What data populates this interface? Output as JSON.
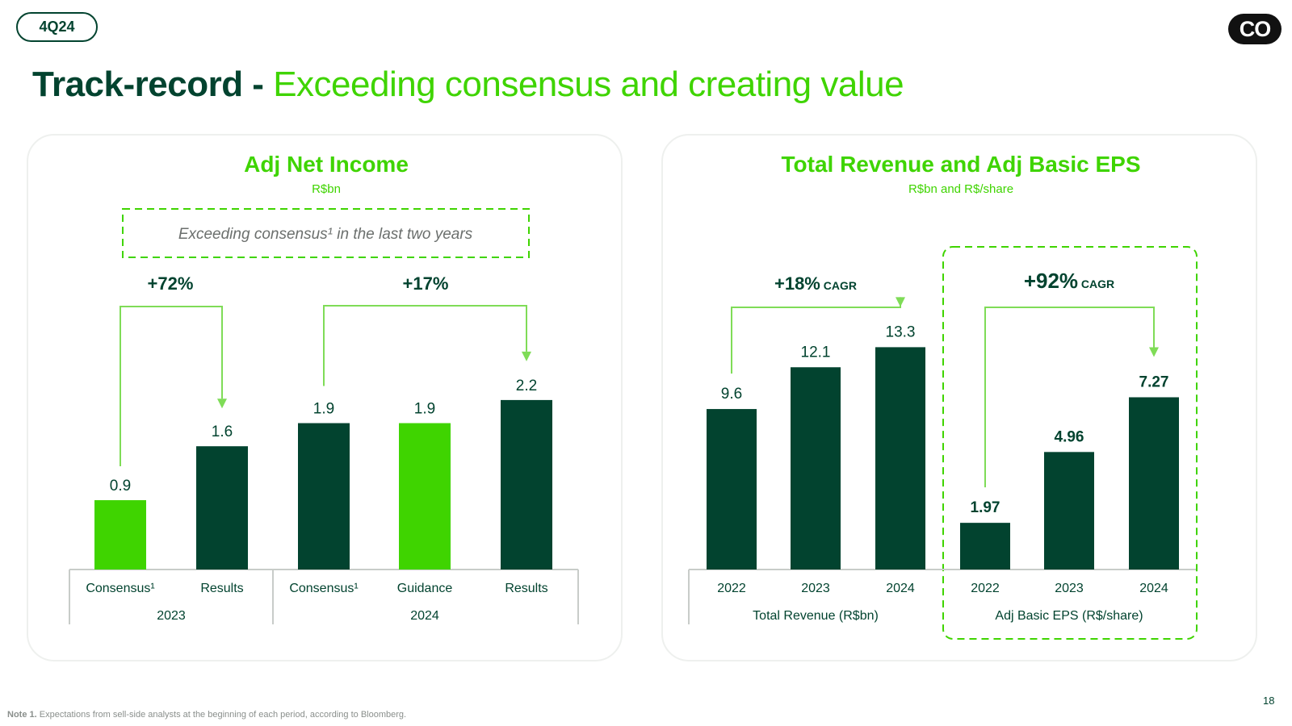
{
  "header": {
    "period_tag": "4Q24",
    "logo_text": "CO"
  },
  "title": {
    "dark": "Track-record - ",
    "light": "Exceeding consensus and creating value"
  },
  "colors": {
    "dark": "#02432f",
    "light": "#3fd400",
    "arrow": "#7fdc57",
    "axis": "#c8ccc9",
    "muted": "#6b6f6d"
  },
  "chart_data": [
    {
      "type": "bar",
      "title": "Adj Net Income",
      "subtitle": "R$bn",
      "callout": "Exceeding consensus¹ in the last two years",
      "categories": [
        "Consensus¹",
        "Results",
        "Consensus¹",
        "Guidance",
        "Results"
      ],
      "groups": [
        "2023",
        "2024"
      ],
      "values": [
        0.9,
        1.6,
        1.9,
        1.9,
        2.2
      ],
      "value_labels": [
        "0.9",
        "1.6",
        "1.9",
        "1.9",
        "2.2"
      ],
      "bar_colors": [
        "light",
        "dark",
        "dark",
        "light",
        "dark"
      ],
      "annotations": [
        {
          "text": "+72%",
          "from_index": 0,
          "to_index": 1
        },
        {
          "text": "+17%",
          "from_index": 2,
          "to_index": 4
        }
      ],
      "ylim": [
        0,
        2.5
      ]
    },
    {
      "type": "bar",
      "title": "Total Revenue and Adj Basic EPS",
      "subtitle": "R$bn and R$/share",
      "series": [
        {
          "name": "Total Revenue (R$bn)",
          "categories": [
            "2022",
            "2023",
            "2024"
          ],
          "values": [
            9.6,
            12.1,
            13.3
          ],
          "value_labels": [
            "9.6",
            "12.1",
            "13.3"
          ],
          "annotation": "+18%",
          "annotation_suffix": "CAGR",
          "ylim": [
            0,
            18
          ]
        },
        {
          "name": "Adj Basic EPS (R$/share)",
          "categories": [
            "2022",
            "2023",
            "2024"
          ],
          "values": [
            1.97,
            4.96,
            7.27
          ],
          "value_labels": [
            "1.97",
            "4.96",
            "7.27"
          ],
          "annotation": "+92%",
          "annotation_suffix": "CAGR",
          "ylim": [
            0,
            12.7
          ]
        }
      ]
    }
  ],
  "footnote": {
    "label": "Note 1.",
    "text": "Expectations from sell-side analysts at the beginning of each period, according to Bloomberg."
  },
  "page_number": "18"
}
